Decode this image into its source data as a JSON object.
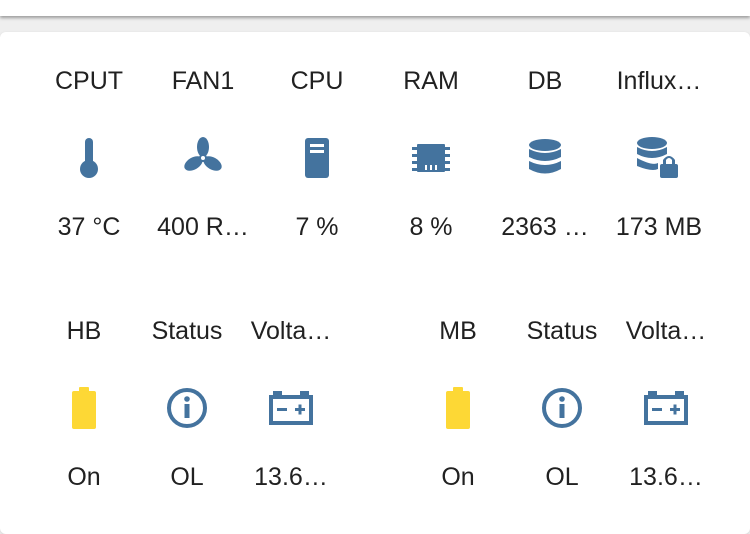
{
  "colors": {
    "icon_blue": "#44739e",
    "icon_yellow": "#fdd835",
    "text": "#212121"
  },
  "rows": [
    {
      "tiles": [
        {
          "name": "CPUT",
          "state": "37 °C",
          "icon": "thermometer-icon"
        },
        {
          "name": "FAN1",
          "state": "400 R…",
          "icon": "fan-icon"
        },
        {
          "name": "CPU",
          "state": "7 %",
          "icon": "server-icon"
        },
        {
          "name": "RAM",
          "state": "8 %",
          "icon": "memory-chip-icon"
        },
        {
          "name": "DB",
          "state": "2363 …",
          "icon": "database-icon"
        },
        {
          "name": "Influx…",
          "state": "173 MB",
          "icon": "database-lock-icon"
        }
      ]
    },
    {
      "tiles": [
        {
          "name": "HB",
          "state": "On",
          "icon": "battery-icon"
        },
        {
          "name": "Status",
          "state": "OL",
          "icon": "info-icon"
        },
        {
          "name": "Volta…",
          "state": "13.6…",
          "icon": "car-battery-icon"
        },
        {
          "name": "MB",
          "state": "On",
          "icon": "battery-icon"
        },
        {
          "name": "Status",
          "state": "OL",
          "icon": "info-icon"
        },
        {
          "name": "Volta…",
          "state": "13.6…",
          "icon": "car-battery-icon"
        }
      ]
    }
  ]
}
